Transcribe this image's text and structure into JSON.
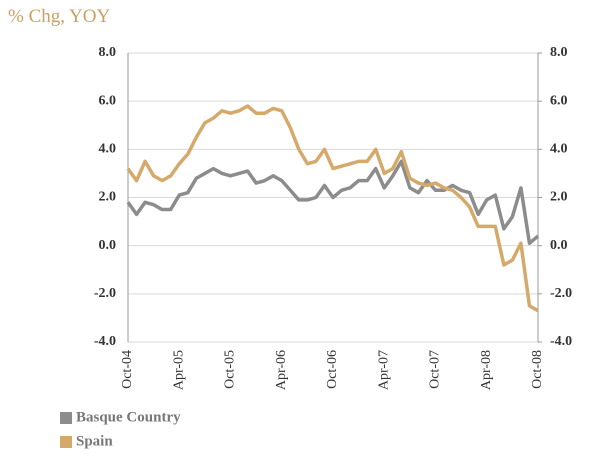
{
  "chart_data": {
    "type": "line",
    "title": "% Chg, YOY",
    "categories": [
      "Oct-04",
      null,
      null,
      null,
      null,
      null,
      "Apr-05",
      null,
      null,
      null,
      null,
      null,
      "Oct-05",
      null,
      null,
      null,
      null,
      null,
      "Apr-06",
      null,
      null,
      null,
      null,
      null,
      "Oct-06",
      null,
      null,
      null,
      null,
      null,
      "Apr-07",
      null,
      null,
      null,
      null,
      null,
      "Oct-07",
      null,
      null,
      null,
      null,
      null,
      "Apr-08",
      null,
      null,
      null,
      null,
      null,
      "Oct-08"
    ],
    "series": [
      {
        "name": "Basque Country",
        "color": "#8c8c8c",
        "values": [
          1.8,
          1.3,
          1.8,
          1.7,
          1.5,
          1.5,
          2.1,
          2.2,
          2.8,
          3.0,
          3.2,
          3.0,
          2.9,
          3.0,
          3.1,
          2.6,
          2.7,
          2.9,
          2.7,
          2.3,
          1.9,
          1.9,
          2.0,
          2.5,
          2.0,
          2.3,
          2.4,
          2.7,
          2.7,
          3.2,
          2.4,
          2.9,
          3.5,
          2.4,
          2.2,
          2.7,
          2.3,
          2.3,
          2.5,
          2.3,
          2.2,
          1.3,
          1.9,
          2.1,
          0.7,
          1.2,
          2.4,
          0.1,
          0.4
        ]
      },
      {
        "name": "Spain",
        "color": "#d4a96a",
        "values": [
          3.2,
          2.7,
          3.5,
          2.9,
          2.7,
          2.9,
          3.4,
          3.8,
          4.5,
          5.1,
          5.3,
          5.6,
          5.5,
          5.6,
          5.8,
          5.5,
          5.5,
          5.7,
          5.6,
          4.9,
          4.0,
          3.4,
          3.5,
          4.0,
          3.2,
          3.3,
          3.4,
          3.5,
          3.5,
          4.0,
          3.0,
          3.2,
          3.9,
          2.8,
          2.6,
          2.5,
          2.6,
          2.4,
          2.3,
          2.0,
          1.6,
          0.8,
          0.8,
          0.8,
          -0.8,
          -0.6,
          0.1,
          -2.5,
          -2.7
        ]
      }
    ],
    "ylim": [
      -4,
      8
    ],
    "yticks": [
      {
        "value": -4,
        "label": "-4.0"
      },
      {
        "value": -2,
        "label": "-2.0"
      },
      {
        "value": 0,
        "label": "0.0"
      },
      {
        "value": 2,
        "label": "2.0"
      },
      {
        "value": 4,
        "label": "4.0"
      },
      {
        "value": 6,
        "label": "6.0"
      },
      {
        "value": 8,
        "label": "8.0"
      }
    ],
    "y2lim": [
      -4,
      8
    ],
    "y2ticks": [
      {
        "value": -4,
        "label": "-4.0"
      },
      {
        "value": -2,
        "label": "-2.0"
      },
      {
        "value": 0,
        "label": "0.0"
      },
      {
        "value": 2,
        "label": "2.0"
      },
      {
        "value": 4,
        "label": "4.0"
      },
      {
        "value": 6,
        "label": "6.0"
      },
      {
        "value": 8,
        "label": "8.0"
      }
    ],
    "grid": true
  }
}
